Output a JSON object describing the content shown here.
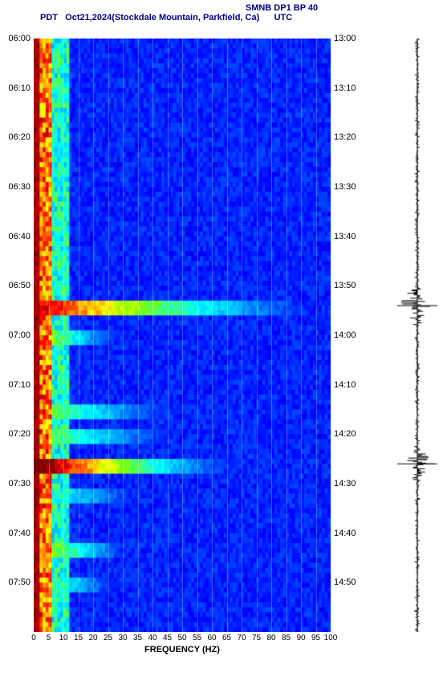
{
  "header": {
    "title": "SMNB DP1 BP 40",
    "subtitle": "PDT   Oct21,2024(Stockdale Mountain, Parkfield, Ca)      UTC"
  },
  "chart": {
    "type": "spectrogram",
    "background_color": "#ffffff",
    "colormap": [
      "#00008b",
      "#0000ff",
      "#0040ff",
      "#0080ff",
      "#00c0ff",
      "#00ffff",
      "#40ff80",
      "#80ff00",
      "#ffff00",
      "#ff8000",
      "#ff0000",
      "#800000"
    ],
    "x_label": "FREQUENCY (HZ)",
    "x_ticks": [
      0,
      5,
      10,
      15,
      20,
      25,
      30,
      35,
      40,
      45,
      50,
      55,
      60,
      65,
      70,
      75,
      80,
      85,
      90,
      95,
      100
    ],
    "xlim": [
      0,
      100
    ],
    "left_ticks": [
      "06:00",
      "06:10",
      "06:20",
      "06:30",
      "06:40",
      "06:50",
      "07:00",
      "07:10",
      "07:20",
      "07:30",
      "07:40",
      "07:50"
    ],
    "right_ticks": [
      "13:00",
      "13:10",
      "13:20",
      "13:30",
      "13:40",
      "13:50",
      "14:00",
      "14:10",
      "14:20",
      "14:30",
      "14:40",
      "14:50"
    ],
    "time_rows": 120,
    "events": [
      {
        "row": 54,
        "intensity": 0.9,
        "width": 100
      },
      {
        "row": 60,
        "intensity": 0.7,
        "width": 30
      },
      {
        "row": 86,
        "intensity": 1.0,
        "width": 70
      },
      {
        "row": 75,
        "intensity": 0.6,
        "width": 50
      },
      {
        "row": 80,
        "intensity": 0.6,
        "width": 50
      },
      {
        "row": 92,
        "intensity": 0.5,
        "width": 40
      },
      {
        "row": 103,
        "intensity": 0.7,
        "width": 35
      },
      {
        "row": 110,
        "intensity": 0.6,
        "width": 30
      }
    ],
    "waveform_events": [
      {
        "row": 54,
        "amp": 1.0
      },
      {
        "row": 86,
        "amp": 0.8
      }
    ],
    "waveform_baseline_amp": 0.12,
    "label_fontsize": 11,
    "tick_fontsize": 10,
    "title_color": "#000080"
  }
}
